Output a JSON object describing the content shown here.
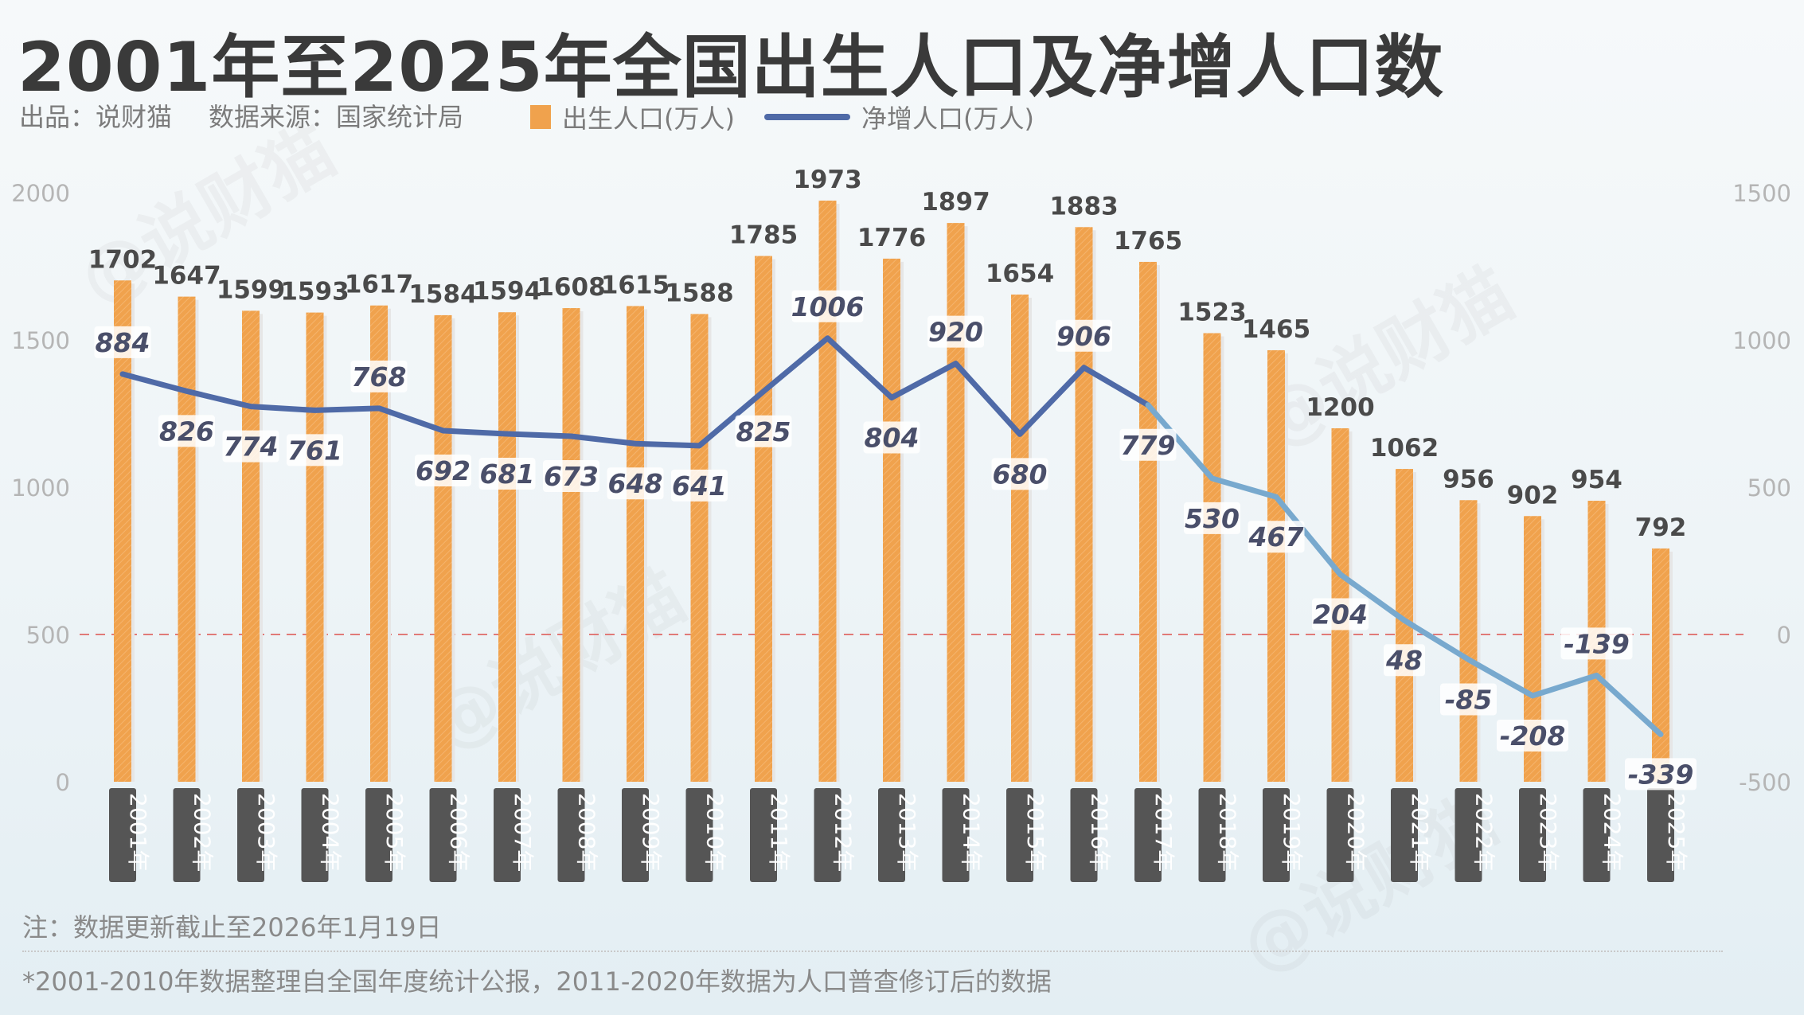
{
  "header": {
    "title": "2001年至2025年全国出生人口及净增人口数",
    "producer": "出品：说财猫",
    "source": "数据来源：国家统计局",
    "watermark": "@说财猫"
  },
  "legend": {
    "bar_label": "出生人口(万人)",
    "line_label": "净增人口(万人)"
  },
  "colors": {
    "bar": "#f0a24d",
    "line_dark": "#4f6aa7",
    "line_light": "#78a9ce",
    "zero_line": "#e07a78",
    "year_box": "#555555"
  },
  "chart_data": {
    "type": "bar",
    "title": "2001年至2025年全国出生人口及净增人口数",
    "categories": [
      "2001年",
      "2002年",
      "2003年",
      "2004年",
      "2005年",
      "2006年",
      "2007年",
      "2008年",
      "2009年",
      "2010年",
      "2011年",
      "2012年",
      "2013年",
      "2014年",
      "2015年",
      "2016年",
      "2017年",
      "2018年",
      "2019年",
      "2020年",
      "2021年",
      "2022年",
      "2023年",
      "2024年",
      "2025年"
    ],
    "series": [
      {
        "name": "出生人口(万人)",
        "type": "bar",
        "axis": "left",
        "values": [
          1702,
          1647,
          1599,
          1593,
          1617,
          1584,
          1594,
          1608,
          1615,
          1588,
          1785,
          1973,
          1776,
          1897,
          1654,
          1883,
          1765,
          1523,
          1465,
          1200,
          1062,
          956,
          902,
          954,
          792
        ]
      },
      {
        "name": "净增人口(万人)",
        "type": "line",
        "axis": "right",
        "values": [
          884,
          826,
          774,
          761,
          768,
          692,
          681,
          673,
          648,
          641,
          825,
          1006,
          804,
          920,
          680,
          906,
          779,
          530,
          467,
          204,
          48,
          -85,
          -208,
          -139,
          -339
        ]
      }
    ],
    "left_axis": {
      "ticks": [
        0,
        500,
        1000,
        1500,
        2000
      ],
      "ylim": [
        0,
        2000
      ]
    },
    "right_axis": {
      "ticks": [
        -500,
        0,
        500,
        1000,
        1500
      ],
      "ylim": [
        -500,
        1500
      ]
    },
    "reference_line": 0,
    "grid": false
  },
  "footer": {
    "note": "注：数据更新截止至2026年1月19日",
    "footnote": "*2001-2010年数据整理自全国年度统计公报，2011-2020年数据为人口普查修订后的数据"
  }
}
